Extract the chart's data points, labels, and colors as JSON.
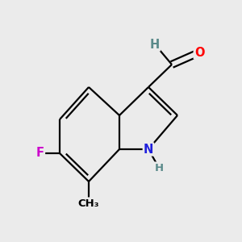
{
  "bg_color": "#ebebeb",
  "bond_color": "#000000",
  "bond_width": 1.6,
  "atom_colors": {
    "C": "#000000",
    "H": "#5a8a8a",
    "N": "#2020dd",
    "O": "#ff0000",
    "F": "#cc00cc"
  },
  "font_size": 10.5,
  "fig_size": [
    3.0,
    3.0
  ],
  "dpi": 100
}
